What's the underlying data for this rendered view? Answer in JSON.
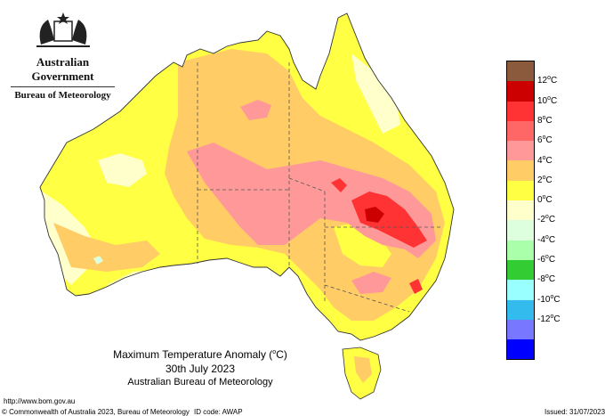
{
  "branding": {
    "government": "Australian Government",
    "bureau": "Bureau of Meteorology"
  },
  "title": {
    "line1_prefix": "Maximum Temperature Anomaly (",
    "line1_unit_deg": "o",
    "line1_unit": "C)",
    "line2": "30th July 2023",
    "line3": "Australian Bureau of Meteorology"
  },
  "footer": {
    "url": "http://www.bom.gov.au",
    "copyright": "© Commonwealth of Australia 2023, Bureau of Meteorology",
    "id_code": "ID code: AWAP",
    "issued": "Issued: 31/07/2023"
  },
  "legend": {
    "unit_deg": "o",
    "unit": "C",
    "swatch_colors": [
      "#8b5a3c",
      "#cc0000",
      "#ff3333",
      "#ff6666",
      "#ff9999",
      "#ffcc66",
      "#ffff44",
      "#ffffcc",
      "#ddffdd",
      "#aaffaa",
      "#33cc33",
      "#99ffff",
      "#33bbee",
      "#7777ff",
      "#0000ff"
    ],
    "labels": [
      {
        "value": "12",
        "sign": ""
      },
      {
        "value": "10",
        "sign": ""
      },
      {
        "value": "8",
        "sign": ""
      },
      {
        "value": "6",
        "sign": ""
      },
      {
        "value": "4",
        "sign": ""
      },
      {
        "value": "2",
        "sign": ""
      },
      {
        "value": "0",
        "sign": ""
      },
      {
        "value": "2",
        "sign": "-"
      },
      {
        "value": "4",
        "sign": "-"
      },
      {
        "value": "6",
        "sign": "-"
      },
      {
        "value": "8",
        "sign": "-"
      },
      {
        "value": "10",
        "sign": "-"
      },
      {
        "value": "12",
        "sign": "-"
      }
    ]
  },
  "colors": {
    "band_0_2": "#ffffcc",
    "band_2_4": "#ffff44",
    "band_4_6": "#ffcc66",
    "band_6_8": "#ff9999",
    "band_8_10": "#ff3333",
    "band_10_12": "#cc0000",
    "band_neg2_0": "#ddffdd"
  }
}
